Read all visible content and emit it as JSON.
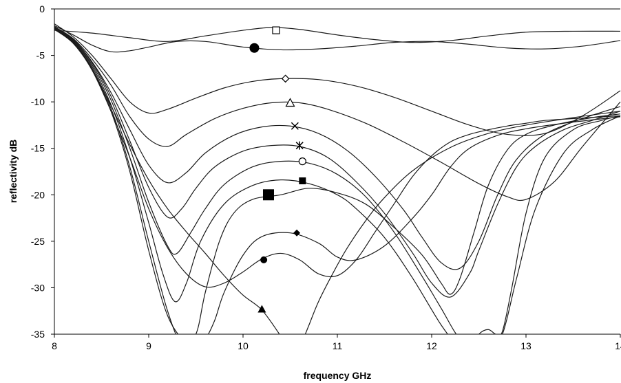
{
  "chart_data": {
    "type": "line",
    "title": "",
    "xlabel": "frequency GHz",
    "ylabel": "reflectivity dB",
    "xlim": [
      8,
      14
    ],
    "ylim": [
      -35,
      0
    ],
    "x_ticks": [
      "8",
      "9",
      "10",
      "11",
      "12",
      "13",
      "14"
    ],
    "y_ticks": [
      "0",
      "-5",
      "-10",
      "-15",
      "-20",
      "-25",
      "-30",
      "-35"
    ],
    "grid": false,
    "legend": "none",
    "series": [
      {
        "marker": "open-square",
        "marker_at": [
          10.35,
          -2.3
        ],
        "x": [
          8,
          8.4,
          8.8,
          9.2,
          9.6,
          10.0,
          10.3,
          10.6,
          11.0,
          11.4,
          11.8,
          12.2,
          12.6,
          13.0,
          13.5,
          14.0
        ],
        "y": [
          -2.3,
          -2.6,
          -3.1,
          -3.5,
          -2.9,
          -2.3,
          -2.0,
          -2.2,
          -2.8,
          -3.3,
          -3.6,
          -3.4,
          -2.9,
          -2.5,
          -2.4,
          -2.4
        ]
      },
      {
        "marker": "filled-circle-large",
        "marker_at": [
          10.12,
          -4.2
        ],
        "x": [
          8,
          8.2,
          8.4,
          8.6,
          8.8,
          9.0,
          9.3,
          9.6,
          10.0,
          10.4,
          10.8,
          11.2,
          11.6,
          12.0,
          12.4,
          12.8,
          13.2,
          13.6,
          14.0
        ],
        "y": [
          -1.8,
          -2.8,
          -3.9,
          -4.6,
          -4.5,
          -4.1,
          -3.5,
          -3.5,
          -4.1,
          -4.4,
          -4.3,
          -4.0,
          -3.6,
          -3.5,
          -3.8,
          -4.2,
          -4.3,
          -4.0,
          -3.4
        ]
      },
      {
        "marker": "open-diamond",
        "marker_at": [
          10.45,
          -7.5
        ],
        "x": [
          8,
          8.2,
          8.4,
          8.6,
          8.8,
          9.0,
          9.2,
          9.5,
          9.8,
          10.1,
          10.4,
          10.8,
          11.2,
          11.6,
          12.0,
          12.4,
          12.8,
          13.2,
          13.6,
          14.0
        ],
        "y": [
          -1.6,
          -3.0,
          -5.0,
          -7.5,
          -10.0,
          -11.2,
          -10.8,
          -9.6,
          -8.5,
          -7.8,
          -7.5,
          -7.6,
          -8.3,
          -9.5,
          -11.0,
          -12.5,
          -13.5,
          -13.4,
          -11.5,
          -8.8
        ]
      },
      {
        "marker": "open-triangle",
        "marker_at": [
          10.5,
          -10.1
        ],
        "x": [
          8,
          8.2,
          8.4,
          8.6,
          8.8,
          9.0,
          9.2,
          9.4,
          9.7,
          10.0,
          10.3,
          10.6,
          10.9,
          11.3,
          11.7,
          12.1,
          12.5,
          12.8,
          13.0,
          13.3,
          13.6,
          14.0
        ],
        "y": [
          -1.9,
          -3.2,
          -5.4,
          -8.2,
          -11.6,
          -14.0,
          -14.8,
          -13.5,
          -11.8,
          -10.7,
          -10.1,
          -10.1,
          -10.8,
          -12.3,
          -14.3,
          -16.5,
          -18.8,
          -20.2,
          -20.5,
          -18.6,
          -14.8,
          -10.0
        ]
      },
      {
        "marker": "x-cross",
        "marker_at": [
          10.55,
          -12.6
        ],
        "x": [
          8,
          8.2,
          8.4,
          8.6,
          8.8,
          9.0,
          9.2,
          9.4,
          9.6,
          9.9,
          10.2,
          10.5,
          10.8,
          11.1,
          11.4,
          11.7,
          11.9,
          12.1,
          12.3,
          12.5,
          12.7,
          12.9,
          13.2,
          13.6,
          14.0
        ],
        "y": [
          -2.0,
          -3.3,
          -5.7,
          -9.0,
          -13.0,
          -16.8,
          -18.7,
          -17.6,
          -15.5,
          -13.6,
          -12.7,
          -12.6,
          -13.4,
          -15.2,
          -18.0,
          -21.6,
          -24.6,
          -27.3,
          -27.9,
          -25.0,
          -20.0,
          -16.2,
          -13.5,
          -11.8,
          -10.5
        ]
      },
      {
        "marker": "asterisk",
        "marker_at": [
          10.6,
          -14.7
        ],
        "x": [
          8,
          8.2,
          8.4,
          8.6,
          8.8,
          9.0,
          9.2,
          9.35,
          9.5,
          9.7,
          10.0,
          10.3,
          10.6,
          10.9,
          11.2,
          11.5,
          11.8,
          12.0,
          12.2,
          12.4,
          12.5,
          12.7,
          12.9,
          13.1,
          13.4,
          13.7,
          14.0
        ],
        "y": [
          -2.0,
          -3.3,
          -5.8,
          -9.4,
          -14.2,
          -19.2,
          -22.4,
          -21.5,
          -19.3,
          -17.0,
          -15.3,
          -14.7,
          -14.8,
          -16.0,
          -18.6,
          -22.0,
          -26.3,
          -29.5,
          -31.0,
          -28.5,
          -26.0,
          -21.0,
          -17.0,
          -14.8,
          -13.0,
          -12.0,
          -11.0
        ]
      },
      {
        "marker": "open-circle",
        "marker_at": [
          10.63,
          -16.4
        ],
        "x": [
          8,
          8.2,
          8.4,
          8.6,
          8.8,
          9.0,
          9.2,
          9.3,
          9.45,
          9.6,
          9.8,
          10.1,
          10.4,
          10.7,
          11.0,
          11.3,
          11.6,
          11.9,
          12.1,
          12.3,
          12.5,
          12.62,
          12.75,
          12.9,
          13.1,
          13.4,
          13.7,
          14.0
        ],
        "y": [
          -2.0,
          -3.4,
          -6.0,
          -9.8,
          -15.0,
          -20.8,
          -25.5,
          -26.3,
          -24.0,
          -21.5,
          -18.9,
          -17.0,
          -16.4,
          -16.6,
          -17.8,
          -20.2,
          -24.0,
          -28.8,
          -32.2,
          -35.5,
          -36.5,
          -36.0,
          -35.0,
          -29.0,
          -21.5,
          -15.5,
          -13.0,
          -11.5
        ]
      },
      {
        "marker": "filled-square",
        "marker_at": [
          10.63,
          -18.5
        ],
        "x": [
          8,
          8.2,
          8.4,
          8.6,
          8.8,
          9.0,
          9.15,
          9.28,
          9.4,
          9.55,
          9.8,
          10.1,
          10.4,
          10.7,
          11.0,
          11.2,
          11.5,
          11.8,
          12.1,
          12.3,
          12.4,
          12.5,
          12.6,
          12.68,
          12.75,
          12.85,
          13.0,
          13.2,
          13.5,
          13.8,
          14.0
        ],
        "y": [
          -2.1,
          -3.5,
          -6.2,
          -10.3,
          -16.0,
          -23.0,
          -28.5,
          -31.5,
          -29.5,
          -25.0,
          -21.0,
          -19.0,
          -18.4,
          -18.8,
          -20.0,
          -21.5,
          -24.6,
          -29.0,
          -34.0,
          -36.5,
          -36.5,
          -35.0,
          -34.5,
          -35.0,
          -34.7,
          -30.0,
          -22.0,
          -16.0,
          -13.0,
          -12.0,
          -11.5
        ]
      },
      {
        "marker": "filled-square-large",
        "marker_at": [
          10.27,
          -20.0
        ],
        "x": [
          8,
          8.2,
          8.4,
          8.6,
          8.8,
          9.0,
          9.2,
          9.35,
          9.5,
          9.6,
          9.75,
          9.9,
          10.1,
          10.4,
          10.7,
          11.0,
          11.3,
          11.6,
          11.9,
          12.1,
          12.2,
          12.3,
          12.45,
          12.6,
          12.8,
          13.0,
          13.3,
          13.7,
          14.0
        ],
        "y": [
          -2.1,
          -3.6,
          -6.4,
          -10.7,
          -17.0,
          -25.0,
          -32.5,
          -36.0,
          -35.0,
          -30.5,
          -25.0,
          -22.0,
          -20.5,
          -20.0,
          -19.3,
          -19.8,
          -21.0,
          -23.5,
          -26.5,
          -29.5,
          -30.7,
          -29.0,
          -24.0,
          -19.0,
          -15.2,
          -13.5,
          -12.5,
          -11.7,
          -11.3
        ]
      },
      {
        "marker": "filled-diamond",
        "marker_at": [
          10.57,
          -24.1
        ],
        "x": [
          8,
          8.2,
          8.4,
          8.6,
          8.8,
          9.0,
          9.2,
          9.4,
          9.5,
          9.6,
          9.7,
          9.8,
          10.0,
          10.2,
          10.5,
          10.8,
          11.0,
          11.2,
          11.5,
          11.8,
          12.0,
          12.2,
          12.4,
          12.7,
          13.0,
          13.4,
          14.0
        ],
        "y": [
          -2.1,
          -3.6,
          -6.5,
          -11.0,
          -17.5,
          -26.0,
          -33.0,
          -36.0,
          -36.0,
          -35.5,
          -33.5,
          -30.5,
          -26.5,
          -24.5,
          -24.1,
          -25.2,
          -26.7,
          -27.0,
          -25.5,
          -22.5,
          -20.0,
          -17.0,
          -15.0,
          -13.6,
          -12.9,
          -12.3,
          -11.6
        ]
      },
      {
        "marker": "filled-circle",
        "marker_at": [
          10.22,
          -27.0
        ],
        "x": [
          8,
          8.2,
          8.4,
          8.6,
          8.8,
          9.0,
          9.2,
          9.4,
          9.6,
          9.8,
          10.0,
          10.2,
          10.4,
          10.6,
          10.8,
          11.0,
          11.2,
          11.4,
          11.6,
          11.8,
          12.0,
          12.2,
          12.4,
          12.6,
          12.8,
          13.0,
          13.2,
          13.5,
          14.0
        ],
        "y": [
          -2.2,
          -3.7,
          -6.6,
          -11.0,
          -16.0,
          -21.5,
          -25.7,
          -28.5,
          -29.9,
          -29.5,
          -28.3,
          -26.9,
          -26.3,
          -27.0,
          -28.5,
          -28.7,
          -27.0,
          -24.0,
          -21.0,
          -18.0,
          -15.8,
          -14.3,
          -13.5,
          -13.0,
          -12.6,
          -12.3,
          -12.0,
          -11.8,
          -11.5
        ]
      },
      {
        "marker": "filled-triangle",
        "marker_at": [
          10.2,
          -32.3
        ],
        "x": [
          8,
          8.2,
          8.4,
          8.6,
          8.8,
          9.0,
          9.2,
          9.4,
          9.6,
          9.8,
          10.0,
          10.2,
          10.4
        ],
        "y": [
          -2.2,
          -3.7,
          -6.5,
          -10.4,
          -14.6,
          -18.4,
          -21.5,
          -24.0,
          -26.3,
          -28.7,
          -30.8,
          -32.4,
          -35.2
        ]
      },
      {
        "marker": "none",
        "marker_at": null,
        "x": [
          10.62,
          10.7,
          10.8,
          10.95,
          11.1,
          11.3,
          11.5,
          11.8,
          12.2,
          12.6,
          13.0,
          13.5,
          14.0
        ],
        "y": [
          -36.0,
          -34.0,
          -31.5,
          -28.5,
          -25.8,
          -22.8,
          -20.3,
          -17.4,
          -14.9,
          -13.4,
          -12.5,
          -11.7,
          -11.0
        ]
      }
    ]
  }
}
